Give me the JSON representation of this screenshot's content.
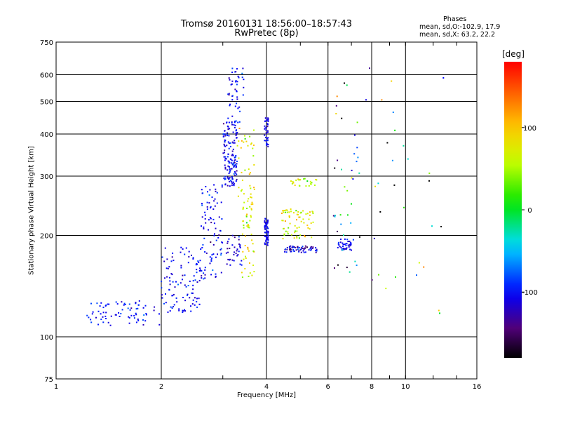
{
  "title_line1": "Tromsø 20160131 18:56:00–18:57:43",
  "title_line2": "RwPretec (8p)",
  "phases": {
    "heading": "Phases",
    "line_o": "mean, sd,O:-102.9, 17.9",
    "line_x": "mean, sd,X:  63.2, 22.2"
  },
  "colorbar": {
    "unit_label": "[deg]",
    "ticks": [
      "100",
      "0",
      "-100"
    ],
    "tick_values": [
      100,
      0,
      -100
    ],
    "range": [
      -180,
      180
    ],
    "colormap": "rainbow (black at -180, violet, blue, cyan, green, yellow, orange, red at +180)"
  },
  "chart_data": {
    "type": "scatter",
    "xlabel": "Frequency [MHz]",
    "ylabel": "Stationary phase Virtual Height [km]",
    "xscale": "log",
    "yscale": "log",
    "xlim": [
      1,
      16
    ],
    "ylim": [
      75,
      750
    ],
    "xticks": [
      1,
      2,
      4,
      6,
      8,
      10,
      16
    ],
    "xtick_labels": [
      "1",
      "2",
      "4",
      "6",
      "8",
      "10",
      "16"
    ],
    "yticks": [
      75,
      100,
      200,
      300,
      400,
      500,
      600,
      750
    ],
    "ytick_labels": [
      "75",
      "100",
      "200",
      "300",
      "400",
      "500",
      "600",
      "750"
    ],
    "grid": true,
    "color_by": "phase (deg)",
    "point_groups": [
      {
        "name": "low-frequency trace",
        "freq_range": [
          1.2,
          2.0
        ],
        "height_range": [
          108,
          128
        ],
        "phase_mean": -100,
        "phase_sd": 12,
        "count": 75
      },
      {
        "name": "rising trace",
        "freq_range": [
          2.0,
          2.6
        ],
        "height_range": [
          118,
          185
        ],
        "phase_mean": -102,
        "phase_sd": 14,
        "count": 110
      },
      {
        "name": "mid trace",
        "freq_range": [
          2.6,
          3.0
        ],
        "height_range": [
          145,
          290
        ],
        "phase_mean": -103,
        "phase_sd": 15,
        "count": 90
      },
      {
        "name": "F-region cusp",
        "freq_range": [
          3.0,
          3.3
        ],
        "height_range": [
          280,
          440
        ],
        "phase_mean": -108,
        "phase_sd": 14,
        "count": 150
      },
      {
        "name": "upper cusp",
        "freq_range": [
          3.1,
          3.45
        ],
        "height_range": [
          430,
          640
        ],
        "phase_mean": -105,
        "phase_sd": 15,
        "count": 45
      },
      {
        "name": "lower cusp branch",
        "freq_range": [
          3.05,
          3.4
        ],
        "height_range": [
          160,
          200
        ],
        "phase_mean": -112,
        "phase_sd": 12,
        "count": 35
      },
      {
        "name": "x-trace yellow",
        "freq_range": [
          3.4,
          3.7
        ],
        "height_range": [
          150,
          260
        ],
        "phase_mean": 75,
        "phase_sd": 20,
        "count": 55
      },
      {
        "name": "x-trace upper",
        "freq_range": [
          3.3,
          3.7
        ],
        "height_range": [
          260,
          420
        ],
        "phase_mean": 70,
        "phase_sd": 25,
        "count": 35
      },
      {
        "name": "4 MHz column low",
        "freq_range": [
          3.95,
          4.05
        ],
        "height_range": [
          185,
          225
        ],
        "phase_mean": -105,
        "phase_sd": 10,
        "count": 55
      },
      {
        "name": "4 MHz column high",
        "freq_range": [
          3.95,
          4.05
        ],
        "height_range": [
          360,
          450
        ],
        "phase_mean": -108,
        "phase_sd": 10,
        "count": 40
      },
      {
        "name": "180 km band",
        "freq_range": [
          4.5,
          5.6
        ],
        "height_range": [
          178,
          186
        ],
        "phase_mean": -110,
        "phase_sd": 25,
        "count": 60
      },
      {
        "name": "200 km layer",
        "freq_range": [
          4.4,
          5.5
        ],
        "height_range": [
          195,
          240
        ],
        "phase_mean": 70,
        "phase_sd": 25,
        "count": 70
      },
      {
        "name": "290 km layer",
        "freq_range": [
          4.7,
          5.6
        ],
        "height_range": [
          280,
          295
        ],
        "phase_mean": 60,
        "phase_sd": 25,
        "count": 25
      },
      {
        "name": "6.5 MHz low",
        "freq_range": [
          6.4,
          7.0
        ],
        "height_range": [
          180,
          195
        ],
        "phase_mean": -110,
        "phase_sd": 12,
        "count": 40
      },
      {
        "name": "6.5 MHz scattered",
        "freq_range": [
          6.2,
          7.4
        ],
        "height_range": [
          150,
          580
        ],
        "phase_mean": -60,
        "phase_sd": 90,
        "count": 40
      },
      {
        "name": "sparse high",
        "freq_range": [
          7.5,
          13
        ],
        "height_range": [
          110,
          660
        ],
        "phase_mean": -40,
        "phase_sd": 100,
        "count": 30
      }
    ]
  }
}
